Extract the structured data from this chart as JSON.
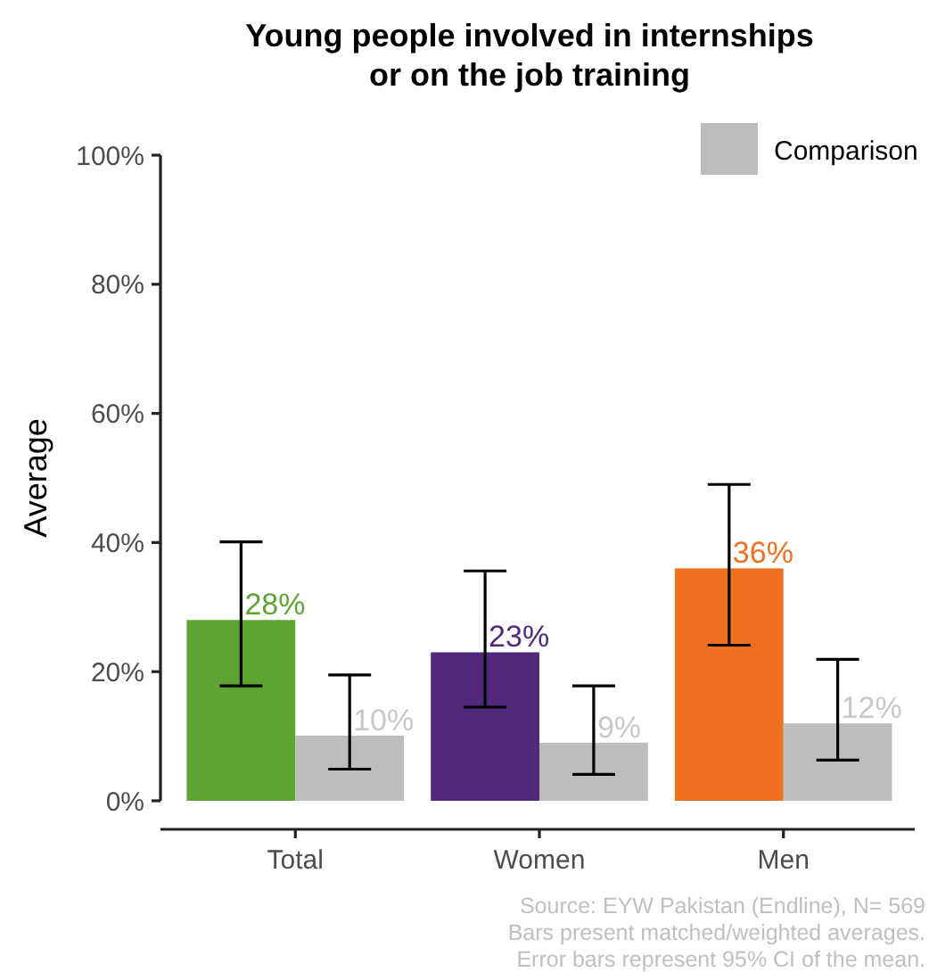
{
  "chart_data": {
    "type": "bar",
    "title": "Young people involved in internships\nor on the job training",
    "ylabel": "Average",
    "categories": [
      "Total",
      "Women",
      "Men"
    ],
    "series": [
      {
        "colors": [
          "#5ea433",
          "#52287a",
          "#f07022"
        ],
        "values": [
          28,
          23,
          36
        ],
        "errors": [
          [
            17.8,
            40.1
          ],
          [
            14.5,
            35.6
          ],
          [
            24.1,
            49
          ]
        ],
        "value_labels": [
          "28%",
          "23%",
          "36%"
        ]
      },
      {
        "name": "Comparison",
        "color": "#bdbdbd",
        "values": [
          10.1,
          9.0,
          12.0
        ],
        "errors": [
          [
            4.9,
            19.5
          ],
          [
            4.1,
            17.8
          ],
          [
            6.3,
            21.9
          ]
        ],
        "value_labels": [
          "10%",
          "9%",
          "12%"
        ]
      }
    ],
    "ylim": [
      0,
      100
    ],
    "yticks": [
      {
        "value": 0,
        "label": "0%"
      },
      {
        "value": 20,
        "label": "20%"
      },
      {
        "value": 40,
        "label": "40%"
      },
      {
        "value": 60,
        "label": "60%"
      },
      {
        "value": 80,
        "label": "80%"
      },
      {
        "value": 100,
        "label": "100%"
      }
    ],
    "grid": false,
    "legend": "top right",
    "annotations": [
      "Source: EYW Pakistan (Endline), N= 569",
      "Bars present matched/weighted averages.",
      "Error bars represent 95% CI of the mean."
    ]
  }
}
